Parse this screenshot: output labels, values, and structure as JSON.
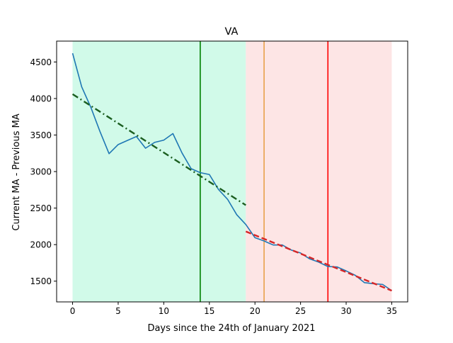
{
  "chart_data": {
    "type": "line",
    "title": "VA",
    "xlabel": "Days since the 24th of January 2021",
    "ylabel": "Current MA - Previous MA",
    "xlim": [
      -1.75,
      36.75
    ],
    "ylim": [
      1216,
      4786
    ],
    "xticks": [
      0,
      5,
      10,
      15,
      20,
      25,
      30,
      35
    ],
    "yticks": [
      1500,
      2000,
      2500,
      3000,
      3500,
      4000,
      4500
    ],
    "grid": false,
    "legend": "none",
    "shaded_regions": [
      {
        "x_start": 0,
        "x_end": 19,
        "color": "#d1fae9"
      },
      {
        "x_start": 19,
        "x_end": 35,
        "color": "#fde5e5"
      }
    ],
    "vertical_lines": [
      {
        "x": 14,
        "color": "#008000"
      },
      {
        "x": 21,
        "color": "#e8a04a"
      },
      {
        "x": 28,
        "color": "#ff0000"
      }
    ],
    "series": [
      {
        "style": "solid",
        "color": "#1f77b4",
        "x": [
          0,
          1,
          2,
          3,
          4,
          5,
          6,
          7,
          8,
          9,
          10,
          11,
          12,
          13,
          14,
          15,
          16,
          17,
          18,
          19,
          20,
          21,
          22,
          23,
          24,
          25,
          26,
          27,
          28,
          29,
          30,
          31,
          32,
          33,
          34,
          35
        ],
        "y": [
          4620,
          4160,
          3880,
          3550,
          3245,
          3370,
          3425,
          3480,
          3320,
          3400,
          3430,
          3520,
          3255,
          3040,
          2985,
          2960,
          2755,
          2620,
          2410,
          2275,
          2095,
          2050,
          1995,
          1995,
          1925,
          1885,
          1805,
          1760,
          1700,
          1695,
          1640,
          1580,
          1480,
          1465,
          1455,
          1370
        ]
      },
      {
        "style": "dashdot",
        "color": "#1b5e20",
        "x": [
          0,
          19
        ],
        "y": [
          4060,
          2540
        ]
      },
      {
        "style": "dashed",
        "color": "#d62728",
        "x": [
          19,
          35
        ],
        "y": [
          2180,
          1370
        ]
      }
    ]
  }
}
